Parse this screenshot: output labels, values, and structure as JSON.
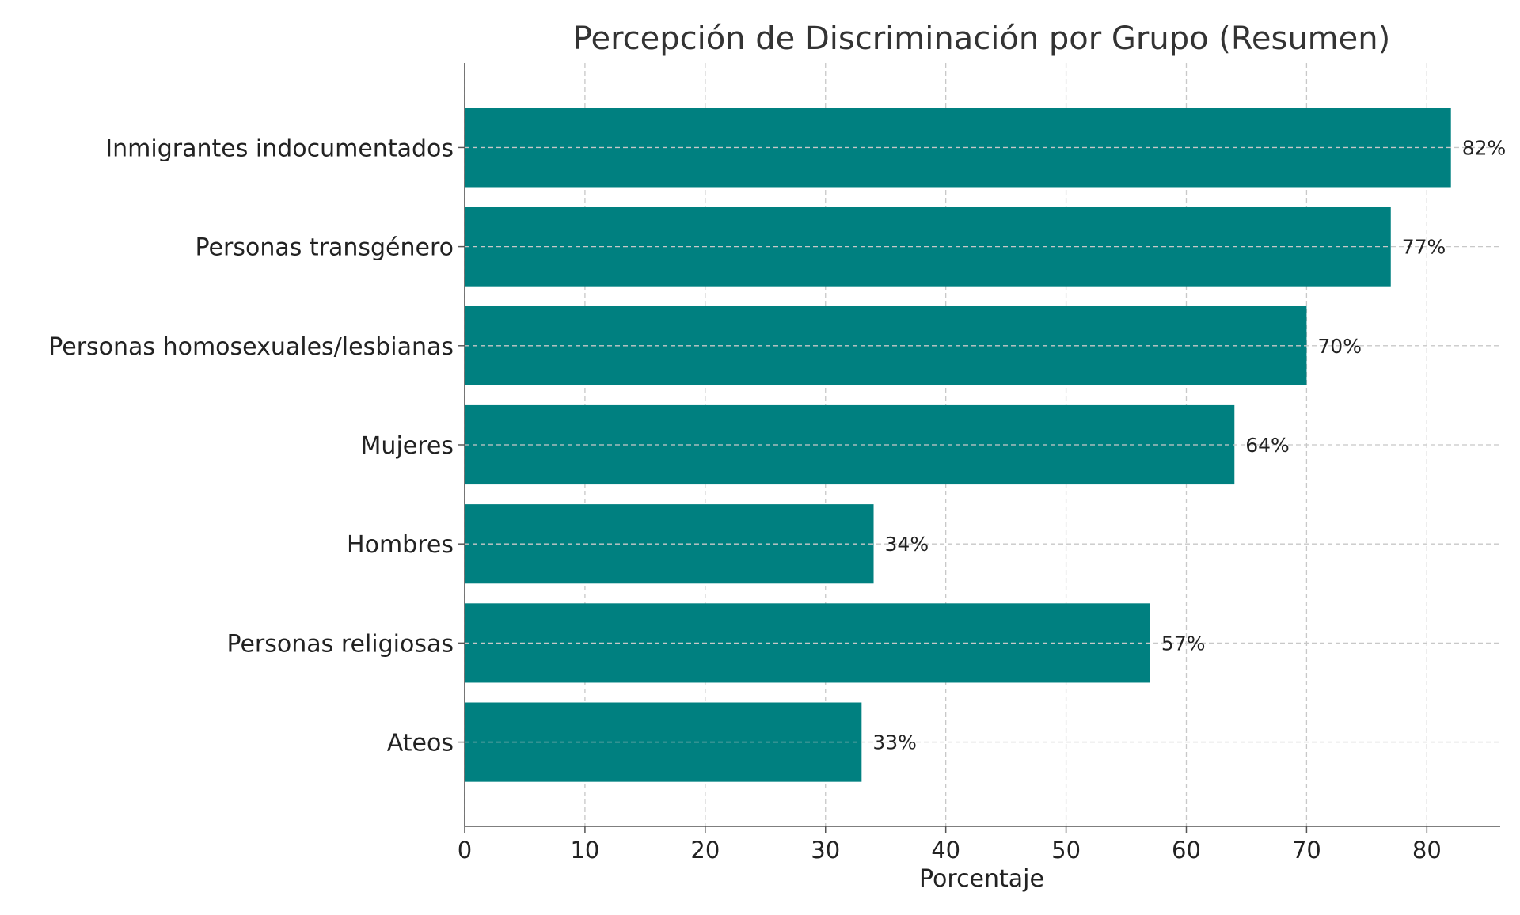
{
  "chart_data": {
    "type": "bar",
    "orientation": "horizontal",
    "title": "Percepción de Discriminación por Grupo (Resumen)",
    "xlabel": "Porcentaje",
    "ylabel": "",
    "categories": [
      "Inmigrantes indocumentados",
      "Personas transgénero",
      "Personas homosexuales/lesbianas",
      "Mujeres",
      "Hombres",
      "Personas religiosas",
      "Ateos"
    ],
    "values": [
      82,
      77,
      70,
      64,
      34,
      57,
      33
    ],
    "data_labels": [
      "82%",
      "77%",
      "70%",
      "64%",
      "34%",
      "57%",
      "33%"
    ],
    "xlim": [
      0,
      86.1
    ],
    "xticks": [
      0,
      10,
      20,
      30,
      40,
      50,
      60,
      70,
      80
    ],
    "grid": true,
    "legend": "none",
    "colors": {
      "bar": "#008080",
      "axis": "#555555",
      "grid": "#c8c8c8",
      "text": "#222222",
      "title": "#333333"
    }
  }
}
